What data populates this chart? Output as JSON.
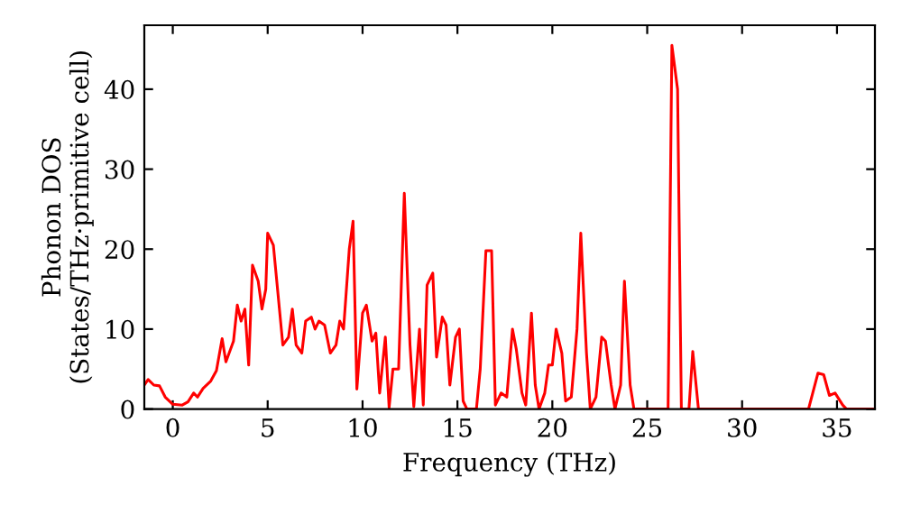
{
  "chart_data": {
    "type": "line",
    "xlabel": "Frequency (THz)",
    "ylabel": "Phonon DOS\n(States/THz·primitive cell)",
    "xlim": [
      -1.5,
      37
    ],
    "ylim": [
      0,
      48
    ],
    "xticks": [
      0,
      5,
      10,
      15,
      20,
      25,
      30,
      35
    ],
    "yticks": [
      0,
      10,
      20,
      30,
      40
    ],
    "grid": false,
    "legend": false,
    "series": [
      {
        "color": "#ff0000",
        "x": [
          -1.5,
          -1.3,
          -1,
          -0.7,
          -0.4,
          0,
          0.5,
          0.8,
          1.1,
          1.3,
          1.6,
          2,
          2.3,
          2.6,
          2.8,
          3.2,
          3.4,
          3.6,
          3.8,
          4.0,
          4.2,
          4.5,
          4.7,
          4.9,
          5.0,
          5.3,
          5.6,
          5.8,
          6.1,
          6.3,
          6.5,
          6.8,
          7,
          7.3,
          7.5,
          7.7,
          8,
          8.3,
          8.6,
          8.8,
          9.0,
          9.3,
          9.5,
          9.7,
          10,
          10.2,
          10.5,
          10.7,
          10.9,
          11.2,
          11.4,
          11.6,
          11.9,
          12.2,
          12.5,
          12.7,
          13.0,
          13.2,
          13.4,
          13.7,
          13.9,
          14.2,
          14.4,
          14.6,
          14.9,
          15.1,
          15.3,
          15.5,
          16,
          16.2,
          16.5,
          16.8,
          17.0,
          17.3,
          17.6,
          17.9,
          18.1,
          18.4,
          18.6,
          18.9,
          19.1,
          19.3,
          19.6,
          19.8,
          20,
          20.2,
          20.5,
          20.7,
          21,
          21.3,
          21.5,
          21.8,
          22,
          22.3,
          22.6,
          22.8,
          23.1,
          23.3,
          23.6,
          23.8,
          24.1,
          24.3,
          26.1,
          26.3,
          26.6,
          26.8,
          27.2,
          27.4,
          27.7,
          33.5,
          34,
          34.3,
          34.6,
          34.9,
          35.3,
          35.5,
          37
        ],
        "values": [
          3,
          3.7,
          3,
          2.9,
          1.5,
          0.6,
          0.5,
          0.9,
          2,
          1.5,
          2.6,
          3.5,
          4.8,
          8.8,
          5.9,
          8.5,
          13,
          11,
          12.5,
          5.5,
          18,
          16,
          12.5,
          15,
          22,
          20.5,
          13,
          8,
          9,
          12.5,
          8,
          7,
          11,
          11.5,
          10,
          11,
          10.5,
          7,
          8,
          11,
          10,
          20,
          23.5,
          2.5,
          12,
          13,
          8.5,
          9.5,
          2,
          9,
          0.2,
          5,
          5,
          27,
          8,
          0.3,
          10,
          0.5,
          15.5,
          17,
          6.5,
          11.5,
          10.5,
          3,
          9,
          10,
          1,
          0,
          0,
          5,
          19.8,
          19.8,
          0.5,
          2,
          1.5,
          10,
          7.5,
          2,
          0.5,
          12,
          3,
          0,
          2,
          5.5,
          5.5,
          10,
          7,
          1,
          1.5,
          10,
          22,
          7,
          0,
          1.5,
          9,
          8.5,
          3,
          0,
          3,
          16,
          3,
          0,
          0,
          45.5,
          40,
          0,
          0,
          7.2,
          0,
          0,
          4.5,
          4.3,
          1.7,
          2,
          0.5,
          0,
          0
        ]
      }
    ]
  }
}
